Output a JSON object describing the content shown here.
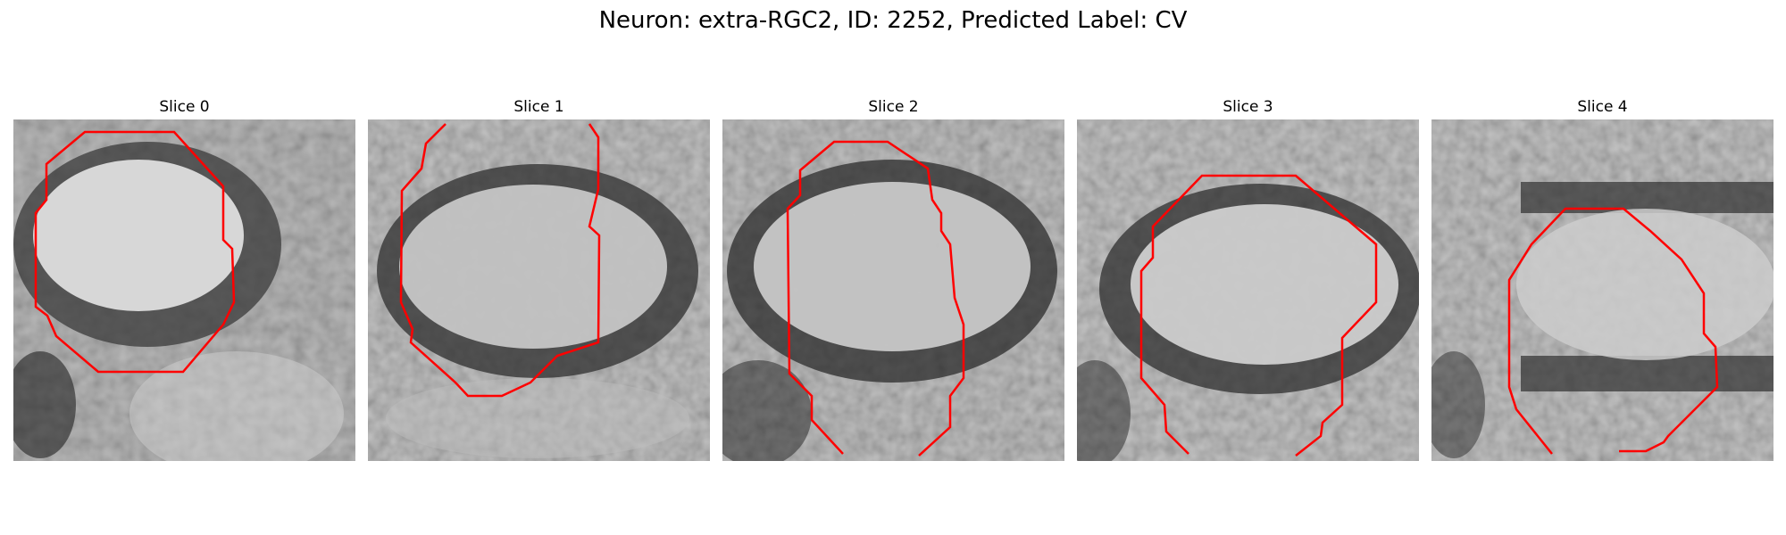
{
  "figure": {
    "title": "Neuron: extra-RGC2, ID: 2252, Predicted Label: CV"
  },
  "panels": [
    {
      "title": "Slice 0"
    },
    {
      "title": "Slice 1"
    },
    {
      "title": "Slice 2"
    },
    {
      "title": "Slice 3"
    },
    {
      "title": "Slice 4"
    }
  ],
  "style": {
    "contour_color": "#ff0000",
    "image_colormap": "grayscale"
  }
}
